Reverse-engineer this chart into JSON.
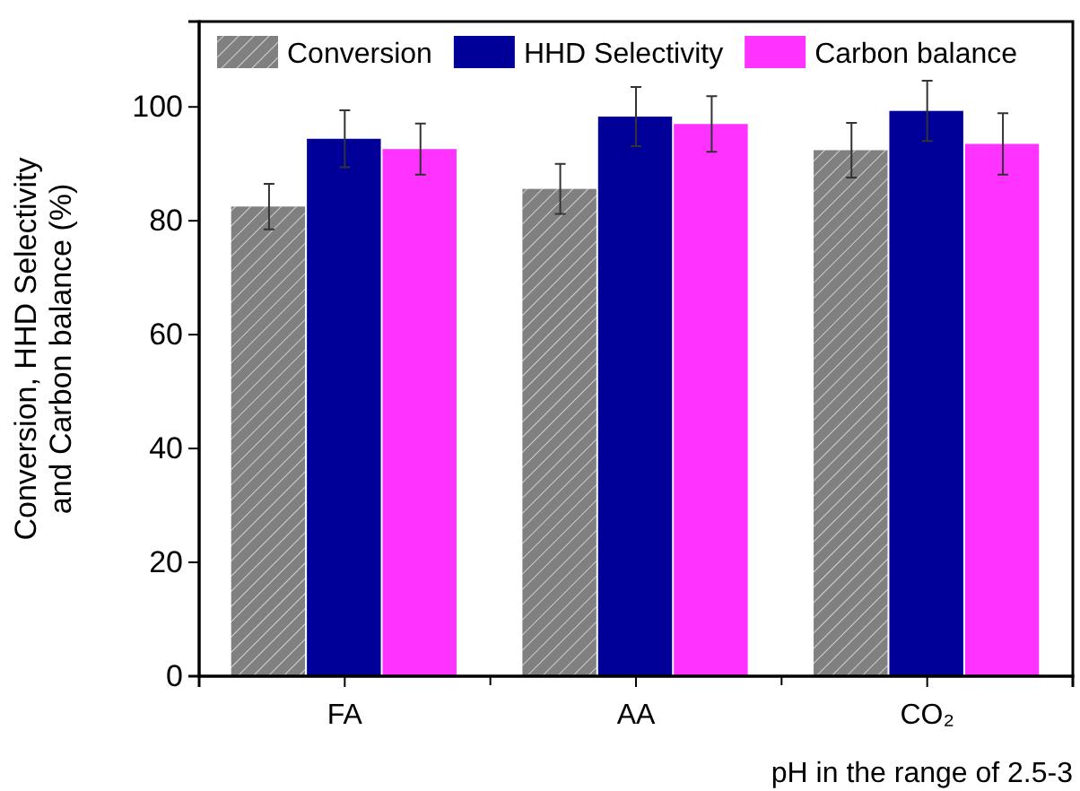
{
  "chart_data": {
    "type": "bar",
    "categories": [
      "FA",
      "AA",
      "CO₂"
    ],
    "series": [
      {
        "name": "Conversion",
        "color": "#808080",
        "values": [
          82.5,
          85.6,
          92.4
        ],
        "errors": [
          4,
          4.4,
          4.8
        ]
      },
      {
        "name": "HHD Selectivity",
        "color": "#000099",
        "values": [
          94.4,
          98.3,
          99.3
        ],
        "errors": [
          5,
          5.2,
          5.3
        ]
      },
      {
        "name": "Carbon balance",
        "color": "#ff33ff",
        "values": [
          92.6,
          97,
          93.5
        ],
        "errors": [
          4.5,
          4.9,
          5.4
        ]
      }
    ],
    "xlabel": "pH in the range of 2.5-3",
    "ylabel": "Conversion, HHD Selectivity\nand Carbon balance (%)",
    "ylim": [
      0,
      115
    ],
    "yticks": [
      0,
      20,
      40,
      60,
      80,
      100
    ],
    "legend": "top",
    "grid": false
  }
}
